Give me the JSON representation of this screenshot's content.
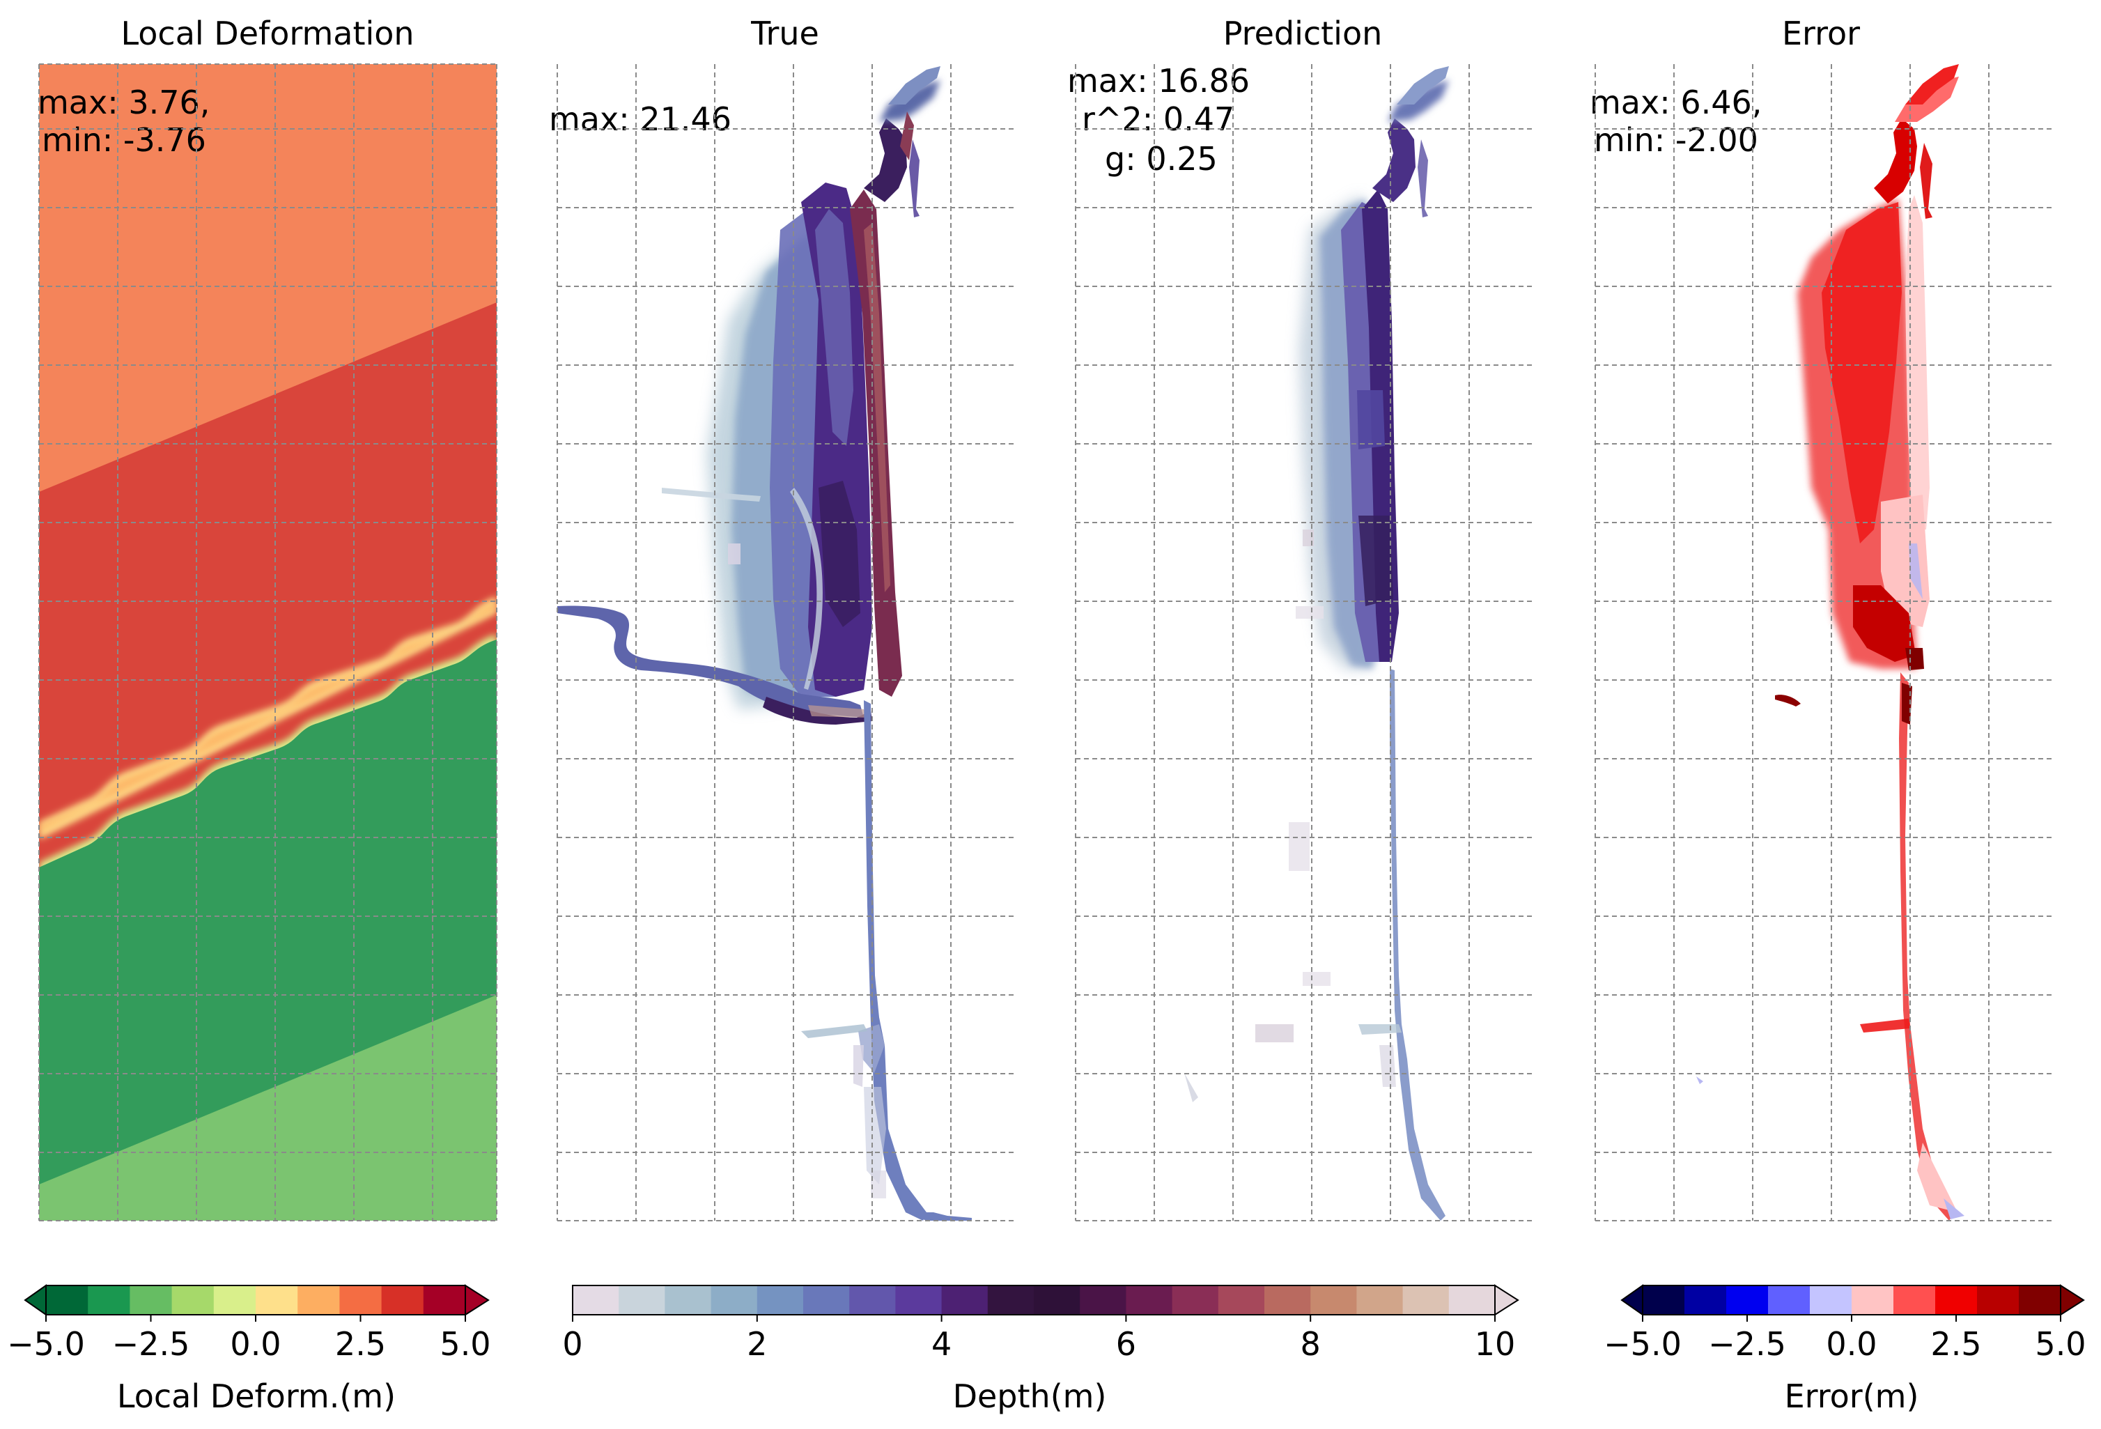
{
  "chart_data": [
    {
      "type": "heatmap",
      "title": "Local Deformation",
      "annotations": [
        "max: 3.76,",
        "min: -3.76"
      ],
      "stats": {
        "max": 3.76,
        "min": -3.76
      },
      "grid": true,
      "colorbar": {
        "label": "Local Deform.(m)",
        "ticks": [
          "−5.0",
          "−2.5",
          "0.0",
          "2.5",
          "5.0"
        ],
        "range": [
          -5.0,
          5.0
        ],
        "extend": "both",
        "colors": [
          "#006837",
          "#1a9850",
          "#66bd63",
          "#a6d96a",
          "#d9ef8b",
          "#fee08b",
          "#fdae61",
          "#f46d43",
          "#d73027",
          "#a50026"
        ]
      },
      "regions": [
        {
          "zone": "top",
          "value_band": [
            1.5,
            2.5
          ],
          "color": "#f4845a"
        },
        {
          "zone": "upper-middle",
          "value_band": [
            2.5,
            3.76
          ],
          "color": "#d9453b"
        },
        {
          "zone": "lower-middle",
          "value_band": [
            -3.76,
            -2.5
          ],
          "color": "#339c5b"
        },
        {
          "zone": "bottom",
          "value_band": [
            -2.5,
            -1.5
          ],
          "color": "#7bc470"
        }
      ]
    },
    {
      "type": "heatmap",
      "title": "True",
      "annotations": [
        "max: 21.46"
      ],
      "stats": {
        "max": 21.46
      },
      "grid": true
    },
    {
      "type": "heatmap",
      "title": "Prediction",
      "annotations": [
        "max: 16.86",
        "r^2: 0.47",
        "g: 0.25"
      ],
      "stats": {
        "max": 16.86,
        "r2": 0.47,
        "g": 0.25
      },
      "grid": true,
      "colorbar": {
        "label": "Depth(m)",
        "ticks": [
          "0",
          "2",
          "4",
          "6",
          "8",
          "10"
        ],
        "range": [
          0,
          10
        ],
        "extend": "max",
        "shared_with": [
          "True",
          "Prediction"
        ],
        "colors": [
          "#e4dbe5",
          "#c9d4dc",
          "#a9c1cf",
          "#8dadc7",
          "#7593c1",
          "#6978ba",
          "#6257ac",
          "#5b3a9d",
          "#4d2173",
          "#33143f",
          "#2e1138",
          "#4a1447",
          "#6a1c50",
          "#8a2e56",
          "#a6485b",
          "#b96a60",
          "#c7896e",
          "#d1a58a",
          "#dcc2b3",
          "#e5d7dc"
        ]
      }
    },
    {
      "type": "heatmap",
      "title": "Error",
      "annotations": [
        "max: 6.46,",
        "min: -2.00"
      ],
      "stats": {
        "max": 6.46,
        "min": -2.0
      },
      "grid": true,
      "colorbar": {
        "label": "Error(m)",
        "ticks": [
          "−5.0",
          "−2.5",
          "0.0",
          "2.5",
          "5.0"
        ],
        "range": [
          -5.0,
          5.0
        ],
        "extend": "both",
        "colors": [
          "#00004c",
          "#0000a3",
          "#0000f0",
          "#6060ff",
          "#c4c4ff",
          "#ffc4c4",
          "#ff5050",
          "#f00000",
          "#b80000",
          "#800000"
        ]
      }
    }
  ]
}
